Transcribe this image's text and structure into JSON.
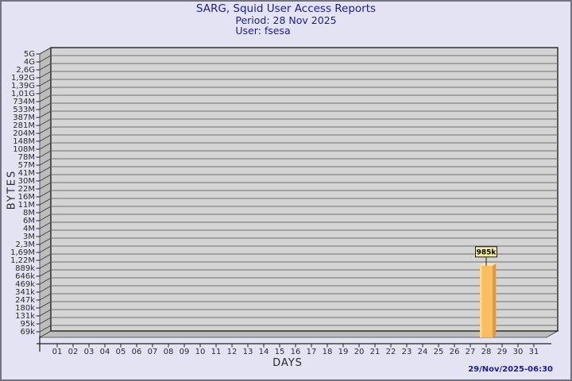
{
  "header": {
    "title": "SARG, Squid User Access Reports",
    "period": "Period: 28 Nov 2025",
    "user": "User: fsesa"
  },
  "footer": {
    "timestamp": "29/Nov/2025-06:30"
  },
  "chart_data": {
    "type": "bar",
    "title": "SARG, Squid User Access Reports",
    "subtitle": [
      "Period: 28 Nov 2025",
      "User: fsesa"
    ],
    "xlabel": "DAYS",
    "ylabel": "BYTES",
    "y_scale": "log",
    "grid": true,
    "style": "3d",
    "x_tick_labels": [
      "01",
      "02",
      "03",
      "04",
      "05",
      "06",
      "07",
      "08",
      "09",
      "10",
      "11",
      "12",
      "13",
      "14",
      "15",
      "16",
      "17",
      "18",
      "19",
      "20",
      "21",
      "22",
      "23",
      "24",
      "25",
      "26",
      "27",
      "28",
      "29",
      "30",
      "31"
    ],
    "values": [
      0,
      0,
      0,
      0,
      0,
      0,
      0,
      0,
      0,
      0,
      0,
      0,
      0,
      0,
      0,
      0,
      0,
      0,
      0,
      0,
      0,
      0,
      0,
      0,
      0,
      0,
      0,
      985000,
      0,
      0,
      0
    ],
    "y_tick_labels": [
      "5G",
      "4G",
      "2,6G",
      "1,92G",
      "1,39G",
      "1,01G",
      "734M",
      "533M",
      "387M",
      "281M",
      "204M",
      "148M",
      "108M",
      "78M",
      "57M",
      "41M",
      "30M",
      "22M",
      "16M",
      "11M",
      "8M",
      "6M",
      "4M",
      "3M",
      "2,3M",
      "1,69M",
      "1,22M",
      "889k",
      "646k",
      "469k",
      "341k",
      "247k",
      "180k",
      "131k",
      "95k",
      "69k"
    ],
    "bar_annotations": [
      {
        "x": "28",
        "text": "985k",
        "value": 985000
      }
    ],
    "colors": {
      "page_bg": "#e3e3f4",
      "title": "#1c1c8f",
      "plot_bg": "#d4d4d4",
      "grid": "#6e6e6e",
      "wall": "#bdbdbd",
      "wall_edge": "#3a3a3a",
      "axis": "#222222",
      "tick_text": "#2a2a2a",
      "bar_face": "#f9be63",
      "bar_side": "#df9b39",
      "bar_top": "#fce4ad",
      "bar_highlight": "#fdd98f",
      "annotation_bg": "#f6ef9f",
      "annotation_border": "#1a1a1a",
      "annotation_text": "#000000"
    }
  }
}
